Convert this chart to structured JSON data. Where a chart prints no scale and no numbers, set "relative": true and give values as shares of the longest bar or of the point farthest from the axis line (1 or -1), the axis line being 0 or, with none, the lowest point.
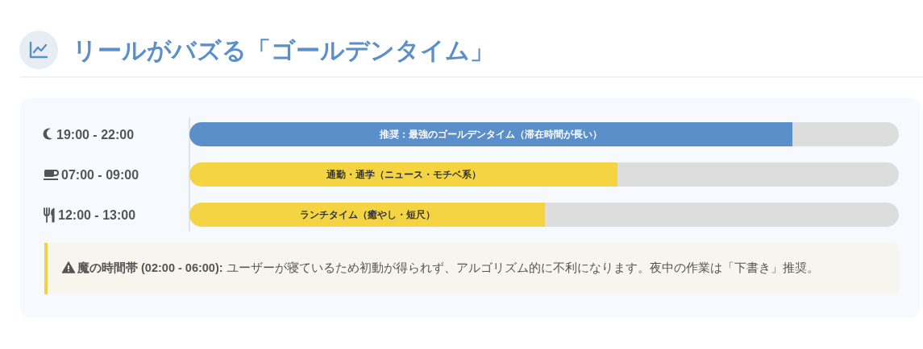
{
  "chart_data": {
    "type": "bar",
    "orientation": "horizontal",
    "relative": true,
    "title": "リールがバズる「ゴールデンタイム」",
    "categories": [
      "19:00 - 22:00",
      "07:00 - 09:00",
      "12:00 - 13:00"
    ],
    "values": [
      1,
      0.71,
      0.59
    ],
    "colors": [
      "#5b8fc9",
      "#f4d443",
      "#f4d443"
    ],
    "annotations": [
      "推奨：最強のゴールデンタイム（滞在時間が長い）",
      "通勤・通学（ニュース・モチベ系）",
      "ランチタイム（癒やし・短尺）",
      "**魔の時間帯 (02:00 - 06:00):** ユーザーが寝ているため初動が得られず、アルゴリズム的に不利になります。夜中の作業は「下書き」推奨。"
    ]
  }
}
